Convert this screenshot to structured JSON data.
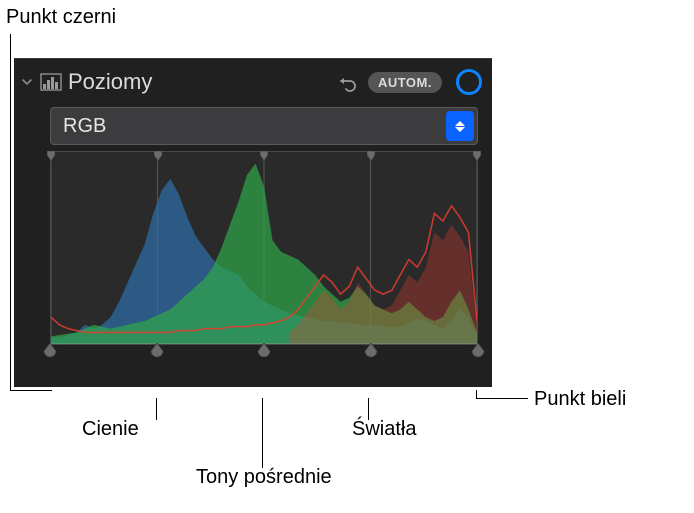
{
  "callouts": {
    "black_point": "Punkt czerni",
    "white_point": "Punkt bieli",
    "shadows": "Cienie",
    "midtones": "Tony pośrednie",
    "highlights": "Światła"
  },
  "panel": {
    "title": "Poziomy",
    "auto_label": "AUTOM.",
    "channel": "RGB"
  },
  "colors": {
    "panel_bg": "#202020",
    "hist_bg": "#2a2a2a",
    "hist_border": "#4a4a4a",
    "gridline": "#757575",
    "axis": "#9a9a9a",
    "red": "#e23d2e",
    "green": "#2fa84a",
    "blue": "#2f6da8",
    "handle_fill": "#6c6c6e",
    "handle_stroke": "#3c3c3e",
    "accent": "#0a84ff",
    "select_bg": "#3c3c3e",
    "select_border": "#5a5a5c",
    "pill_bg": "#555555",
    "pill_fg": "#dcdcdc",
    "title_fg": "#dcdcdc",
    "callout_fg": "#000000"
  },
  "histogram": {
    "type": "histogram",
    "width": 100,
    "height": 100,
    "gridlines_x": [
      0,
      25,
      50,
      75,
      100
    ],
    "top_markers_pct": [
      0,
      25,
      50,
      75,
      100
    ],
    "bottom_handles_pct": [
      0,
      25,
      50,
      75,
      100
    ],
    "series": {
      "blue": {
        "color": "#2f6da8",
        "opacity": 0.72,
        "points": [
          [
            0,
            3
          ],
          [
            3,
            4
          ],
          [
            6,
            6
          ],
          [
            8,
            10
          ],
          [
            10,
            8
          ],
          [
            12,
            10
          ],
          [
            14,
            14
          ],
          [
            16,
            22
          ],
          [
            18,
            32
          ],
          [
            20,
            42
          ],
          [
            22,
            52
          ],
          [
            24,
            68
          ],
          [
            26,
            80
          ],
          [
            28,
            86
          ],
          [
            30,
            78
          ],
          [
            32,
            66
          ],
          [
            34,
            56
          ],
          [
            36,
            50
          ],
          [
            38,
            44
          ],
          [
            40,
            40
          ],
          [
            42,
            38
          ],
          [
            44,
            36
          ],
          [
            46,
            30
          ],
          [
            48,
            26
          ],
          [
            50,
            22
          ],
          [
            52,
            20
          ],
          [
            54,
            18
          ],
          [
            56,
            16
          ],
          [
            58,
            15
          ],
          [
            60,
            14
          ],
          [
            62,
            13
          ],
          [
            64,
            12
          ],
          [
            66,
            12
          ],
          [
            68,
            11
          ],
          [
            70,
            11
          ],
          [
            72,
            10
          ],
          [
            74,
            10
          ],
          [
            76,
            10
          ],
          [
            78,
            9
          ],
          [
            80,
            9
          ],
          [
            82,
            9
          ],
          [
            84,
            11
          ],
          [
            86,
            13
          ],
          [
            88,
            12
          ],
          [
            90,
            10
          ],
          [
            92,
            8
          ],
          [
            94,
            12
          ],
          [
            96,
            18
          ],
          [
            98,
            14
          ],
          [
            100,
            4
          ]
        ]
      },
      "green": {
        "color": "#2fa84a",
        "opacity": 0.7,
        "points": [
          [
            0,
            4
          ],
          [
            3,
            5
          ],
          [
            6,
            6
          ],
          [
            8,
            8
          ],
          [
            10,
            10
          ],
          [
            12,
            9
          ],
          [
            14,
            8
          ],
          [
            16,
            9
          ],
          [
            18,
            10
          ],
          [
            20,
            11
          ],
          [
            22,
            12
          ],
          [
            24,
            14
          ],
          [
            26,
            16
          ],
          [
            28,
            18
          ],
          [
            30,
            22
          ],
          [
            32,
            26
          ],
          [
            34,
            30
          ],
          [
            36,
            34
          ],
          [
            38,
            40
          ],
          [
            40,
            50
          ],
          [
            42,
            62
          ],
          [
            44,
            74
          ],
          [
            46,
            88
          ],
          [
            48,
            94
          ],
          [
            50,
            82
          ],
          [
            52,
            54
          ],
          [
            54,
            48
          ],
          [
            56,
            46
          ],
          [
            58,
            44
          ],
          [
            60,
            40
          ],
          [
            62,
            36
          ],
          [
            64,
            30
          ],
          [
            66,
            26
          ],
          [
            68,
            22
          ],
          [
            70,
            24
          ],
          [
            72,
            30
          ],
          [
            74,
            26
          ],
          [
            76,
            20
          ],
          [
            78,
            18
          ],
          [
            80,
            16
          ],
          [
            82,
            18
          ],
          [
            84,
            22
          ],
          [
            86,
            18
          ],
          [
            88,
            14
          ],
          [
            90,
            12
          ],
          [
            92,
            14
          ],
          [
            94,
            22
          ],
          [
            96,
            28
          ],
          [
            98,
            18
          ],
          [
            100,
            6
          ]
        ]
      },
      "red": {
        "color": "#e23d2e",
        "opacity": 0.85,
        "stroke_only": true,
        "stroke_width": 1.6,
        "points": [
          [
            0,
            14
          ],
          [
            2,
            10
          ],
          [
            4,
            8
          ],
          [
            6,
            7
          ],
          [
            8,
            6
          ],
          [
            10,
            6
          ],
          [
            12,
            6
          ],
          [
            14,
            6
          ],
          [
            16,
            6
          ],
          [
            18,
            6
          ],
          [
            20,
            6
          ],
          [
            22,
            6
          ],
          [
            24,
            6
          ],
          [
            26,
            6
          ],
          [
            28,
            6
          ],
          [
            30,
            7
          ],
          [
            32,
            7
          ],
          [
            34,
            7
          ],
          [
            36,
            8
          ],
          [
            38,
            8
          ],
          [
            40,
            8
          ],
          [
            42,
            9
          ],
          [
            44,
            9
          ],
          [
            46,
            9
          ],
          [
            48,
            10
          ],
          [
            50,
            10
          ],
          [
            52,
            11
          ],
          [
            54,
            12
          ],
          [
            56,
            14
          ],
          [
            58,
            18
          ],
          [
            60,
            24
          ],
          [
            62,
            30
          ],
          [
            64,
            36
          ],
          [
            66,
            32
          ],
          [
            68,
            26
          ],
          [
            70,
            30
          ],
          [
            72,
            40
          ],
          [
            74,
            34
          ],
          [
            76,
            28
          ],
          [
            78,
            26
          ],
          [
            80,
            28
          ],
          [
            82,
            36
          ],
          [
            84,
            44
          ],
          [
            86,
            40
          ],
          [
            88,
            48
          ],
          [
            90,
            68
          ],
          [
            92,
            64
          ],
          [
            94,
            72
          ],
          [
            96,
            66
          ],
          [
            98,
            58
          ],
          [
            100,
            12
          ]
        ]
      },
      "red_fill": {
        "color": "#e23d2e",
        "opacity": 0.32,
        "points": [
          [
            56,
            6
          ],
          [
            58,
            10
          ],
          [
            60,
            16
          ],
          [
            62,
            22
          ],
          [
            64,
            28
          ],
          [
            66,
            24
          ],
          [
            68,
            18
          ],
          [
            70,
            22
          ],
          [
            72,
            32
          ],
          [
            74,
            26
          ],
          [
            76,
            20
          ],
          [
            78,
            18
          ],
          [
            80,
            20
          ],
          [
            82,
            28
          ],
          [
            84,
            36
          ],
          [
            86,
            32
          ],
          [
            88,
            40
          ],
          [
            90,
            58
          ],
          [
            92,
            54
          ],
          [
            94,
            62
          ],
          [
            96,
            56
          ],
          [
            98,
            48
          ],
          [
            100,
            8
          ]
        ]
      }
    }
  }
}
